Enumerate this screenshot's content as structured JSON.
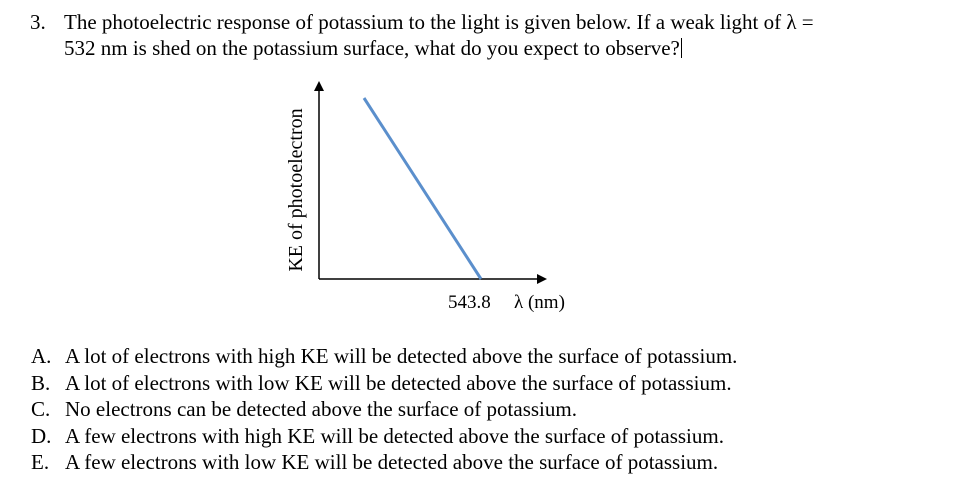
{
  "question": {
    "number": "3.",
    "line1": "The photoelectric response of potassium to the light is given below. If a weak light of λ =",
    "line2": "532 nm is shed on the potassium surface, what do you expect to observe?"
  },
  "chart_data": {
    "type": "line",
    "ylabel": "KE of photoelectron",
    "xlabel": "λ (nm)",
    "x_tick_labels": [
      "543.8"
    ],
    "series": [
      {
        "points": []
      }
    ],
    "line_color": "#5b8fcc",
    "grid": false,
    "legend": "none"
  },
  "options": [
    {
      "letter": "A.",
      "text": "A lot of electrons with high KE will be detected above the surface of potassium."
    },
    {
      "letter": "B.",
      "text": "A lot of electrons with low KE will be detected above the surface of potassium."
    },
    {
      "letter": "C.",
      "text": "No electrons can be detected above the surface of potassium."
    },
    {
      "letter": "D.",
      "text": "A few electrons with high KE will be detected above the surface of potassium."
    },
    {
      "letter": "E.",
      "text": "A few electrons with low KE will be detected above the surface of potassium."
    }
  ]
}
